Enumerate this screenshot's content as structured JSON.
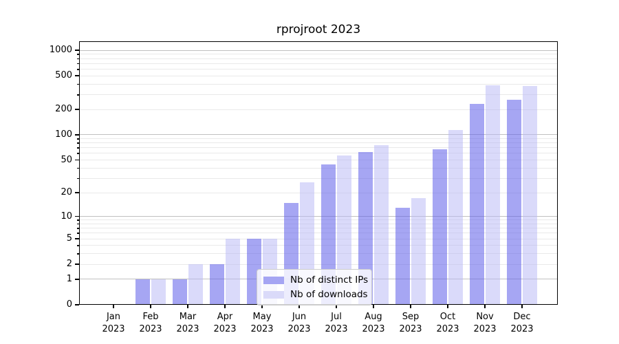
{
  "chart_data": {
    "type": "bar",
    "title": "rprojroot 2023",
    "categories": [
      "Jan 2023",
      "Feb 2023",
      "Mar 2023",
      "Apr 2023",
      "May 2023",
      "Jun 2023",
      "Jul 2023",
      "Aug 2023",
      "Sep 2023",
      "Oct 2023",
      "Nov 2023",
      "Dec 2023"
    ],
    "series": [
      {
        "name": "Nb of distinct IPs",
        "values": [
          0,
          1,
          1,
          2,
          5,
          15,
          44,
          62,
          13,
          67,
          234,
          259
        ],
        "fill": "rgba(92, 92, 233, 0.55)",
        "legend_color": "#a5a5f3"
      },
      {
        "name": "Nb of downloads",
        "values": [
          0,
          1,
          2,
          5,
          5,
          27,
          57,
          76,
          17,
          115,
          388,
          381
        ],
        "fill": "rgba(182, 182, 246, 0.5)",
        "legend_color": "#dadaf9"
      }
    ],
    "yscale": "log10(value+1)",
    "ylim": [
      0,
      1280
    ],
    "y_ticks": [
      0,
      1,
      2,
      5,
      10,
      20,
      50,
      100,
      200,
      500,
      1000
    ],
    "y_major_gridlines": [
      1,
      10,
      100,
      1000
    ],
    "y_minor_gridlines": [
      2,
      3,
      4,
      5,
      6,
      7,
      8,
      9,
      20,
      30,
      40,
      50,
      60,
      70,
      80,
      90,
      200,
      300,
      400,
      500,
      600,
      700,
      800,
      900
    ],
    "grid": "horizontal major+minor",
    "legend_position": "inside lower-center-left",
    "colors": {
      "grid_major": "#c0c0c0",
      "grid_minor": "#e9e9e9",
      "spine": "#000000",
      "text": "#000000"
    }
  }
}
